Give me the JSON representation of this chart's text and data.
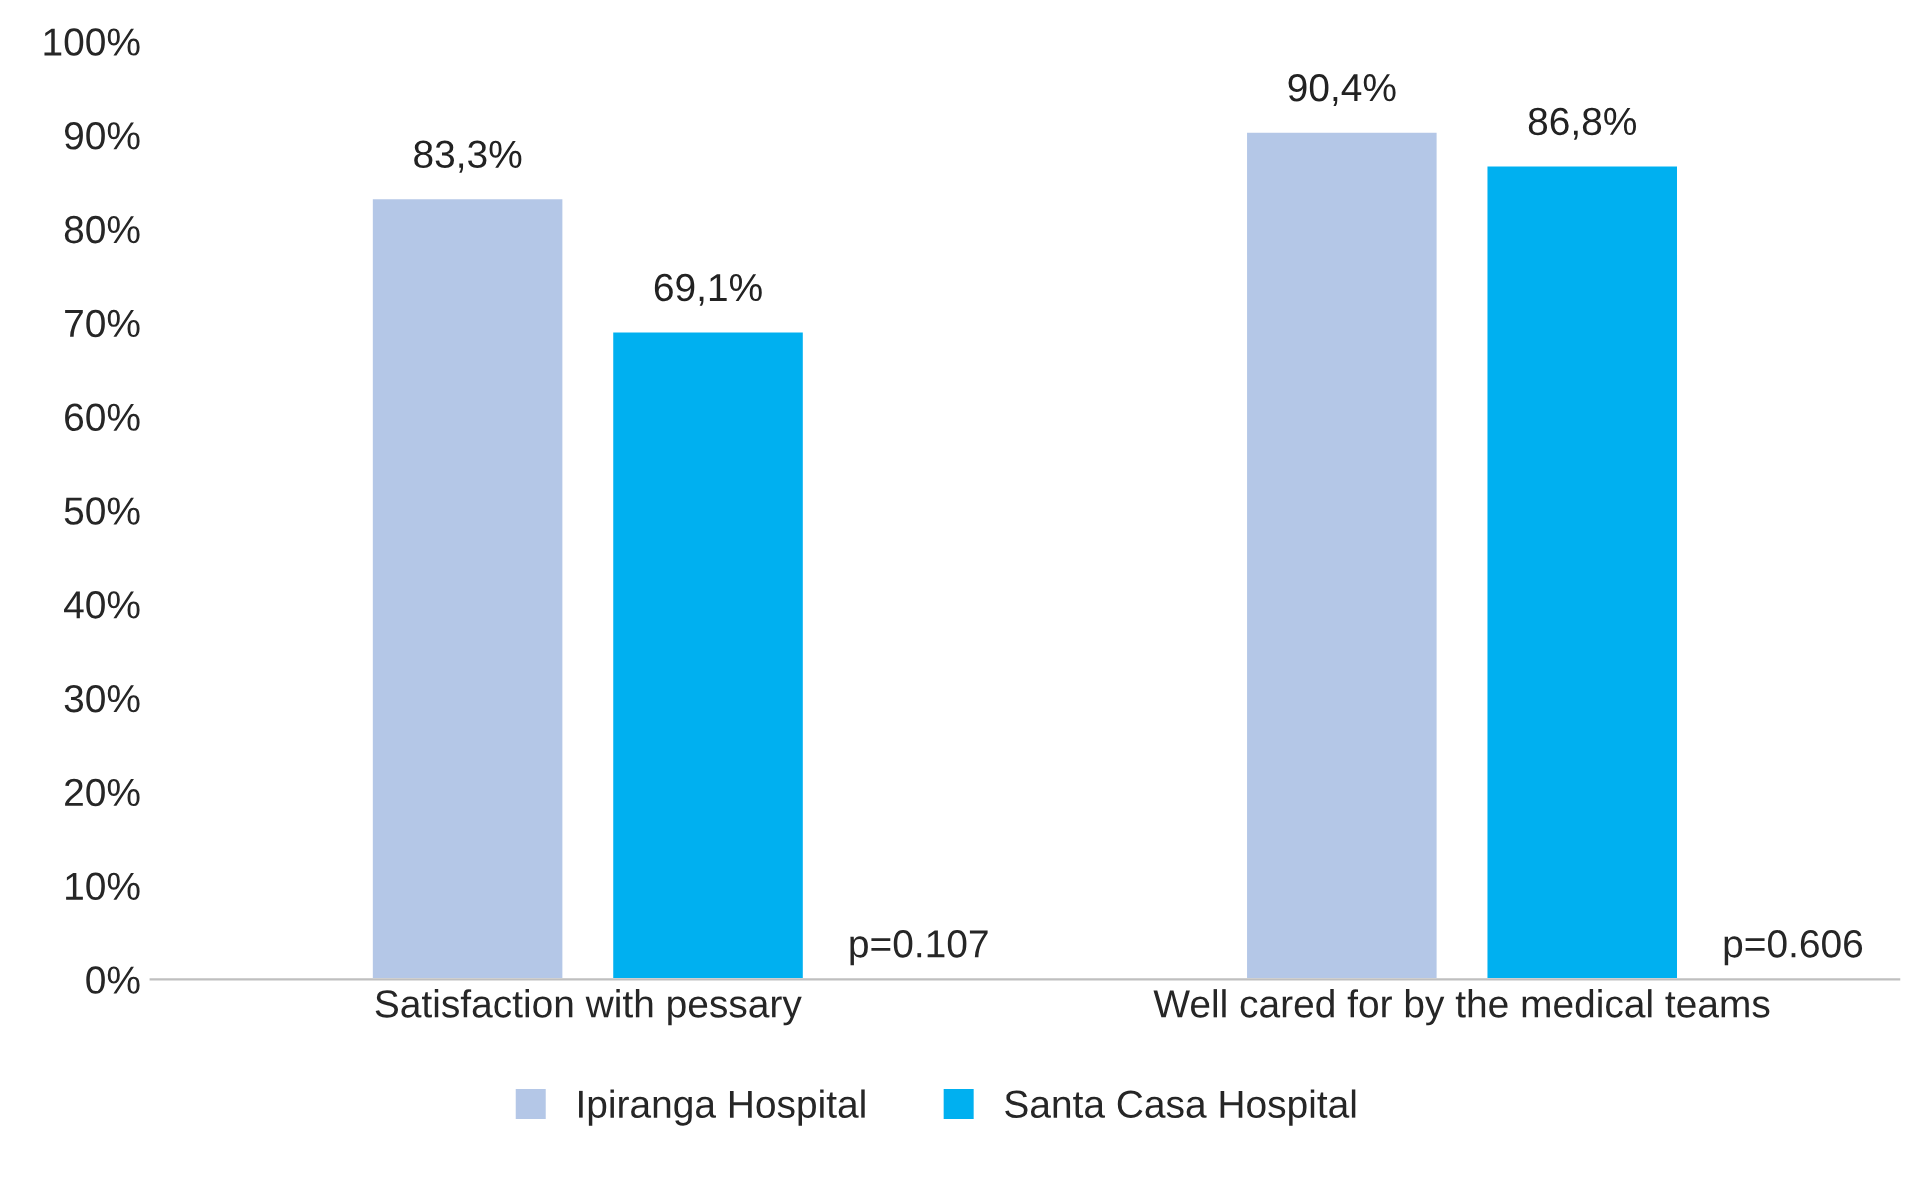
{
  "chart_data": {
    "type": "bar",
    "categories": [
      "Satisfaction with pessary",
      "Well cared for by the medical teams"
    ],
    "series": [
      {
        "name": "Ipiranga Hospital",
        "color": "#b4c7e7",
        "values": [
          83.3,
          90.4
        ],
        "value_labels": [
          "83,3%",
          "90,4%"
        ]
      },
      {
        "name": "Santa Casa Hospital",
        "color": "#00b0f0",
        "values": [
          69.1,
          86.8
        ],
        "value_labels": [
          "69,1%",
          "86,8%"
        ]
      }
    ],
    "ylim": [
      0,
      100
    ],
    "yticks": [
      {
        "value": 0,
        "label": "0%"
      },
      {
        "value": 10,
        "label": "10%"
      },
      {
        "value": 20,
        "label": "20%"
      },
      {
        "value": 30,
        "label": "30%"
      },
      {
        "value": 40,
        "label": "40%"
      },
      {
        "value": 50,
        "label": "50%"
      },
      {
        "value": 60,
        "label": "60%"
      },
      {
        "value": 70,
        "label": "70%"
      },
      {
        "value": 80,
        "label": "80%"
      },
      {
        "value": 90,
        "label": "90%"
      },
      {
        "value": 100,
        "label": "100%"
      }
    ],
    "annotations": [
      "p=0.107",
      "p=0.606"
    ],
    "grid": false,
    "legend": "bottom"
  }
}
